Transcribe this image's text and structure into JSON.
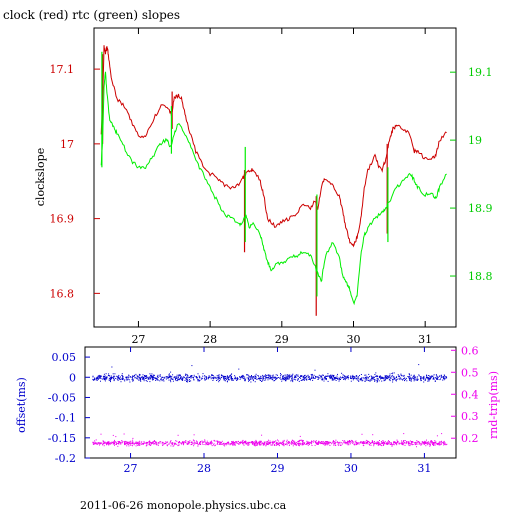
{
  "footer": "2011-06-26 monopole.physics.ubc.ca",
  "chart_data": [
    {
      "type": "line",
      "title": "clock (red) rtc (green) slopes",
      "xlabel": "",
      "ylabel": "clockslope",
      "xlim": [
        26.38,
        31.43
      ],
      "ylim": [
        16.755,
        17.155
      ],
      "y2lim": [
        18.725,
        19.165
      ],
      "x_ticks": [
        27,
        28,
        29,
        30,
        31
      ],
      "x_tick_labels": [
        "27",
        "28",
        "29",
        "30",
        "31"
      ],
      "y_ticks": [
        16.8,
        16.9,
        17,
        17.1
      ],
      "y_tick_labels": [
        "16.8",
        "16.9",
        "17",
        "17.1"
      ],
      "y2_ticks": [
        18.8,
        18.9,
        19,
        19.1
      ],
      "y2_tick_labels": [
        "18.8",
        "18.9",
        "19",
        "19.1"
      ],
      "colors": {
        "clock": "#cc0000",
        "rtc": "#00ee00",
        "left_axis": "#cc0000",
        "right_axis": "#00cc00"
      },
      "series": [
        {
          "axis": "left",
          "x": [
            26.48,
            26.5,
            26.52,
            26.54,
            26.56,
            26.58,
            26.62,
            26.7,
            26.8,
            26.9,
            27.0,
            27.1,
            27.2,
            27.3,
            27.4,
            27.46,
            27.5,
            27.55,
            27.6,
            27.65,
            27.7,
            27.8,
            27.9,
            28.0,
            28.1,
            28.2,
            28.3,
            28.4,
            28.46,
            28.5,
            28.55,
            28.6,
            28.7,
            28.75,
            28.8,
            28.9,
            29.0,
            29.1,
            29.2,
            29.3,
            29.4,
            29.47,
            29.5,
            29.55,
            29.6,
            29.7,
            29.8,
            29.85,
            29.9,
            29.95,
            30.0,
            30.05,
            30.1,
            30.15,
            30.2,
            30.3,
            30.35,
            30.4,
            30.45,
            30.5,
            30.55,
            30.6,
            30.7,
            30.8,
            30.85,
            30.9,
            31.0,
            31.1,
            31.15,
            31.2,
            31.3
          ],
          "y": [
            17.01,
            17.06,
            17.13,
            17.12,
            17.13,
            17.12,
            17.09,
            17.06,
            17.05,
            17.03,
            17.01,
            17.01,
            17.03,
            17.05,
            17.05,
            17.04,
            17.06,
            17.065,
            17.06,
            17.04,
            17.02,
            16.99,
            16.97,
            16.96,
            16.955,
            16.945,
            16.94,
            16.945,
            16.955,
            16.96,
            16.965,
            16.965,
            16.95,
            16.93,
            16.9,
            16.89,
            16.895,
            16.9,
            16.905,
            16.92,
            16.915,
            16.925,
            16.91,
            16.94,
            16.955,
            16.945,
            16.93,
            16.91,
            16.885,
            16.87,
            16.865,
            16.875,
            16.9,
            16.94,
            16.965,
            16.985,
            16.97,
            16.965,
            16.98,
            17.005,
            17.02,
            17.025,
            17.02,
            17.01,
            16.99,
            16.99,
            16.98,
            16.98,
            16.985,
            17.005,
            17.015
          ],
          "spikes": [
            {
              "x": 26.5,
              "low": 17.0,
              "high": 17.12
            },
            {
              "x": 27.47,
              "low": 17.02,
              "high": 17.07
            },
            {
              "x": 28.48,
              "low": 16.855,
              "high": 16.965
            },
            {
              "x": 29.48,
              "low": 16.77,
              "high": 16.93
            },
            {
              "x": 30.47,
              "low": 16.88,
              "high": 17.0
            }
          ]
        },
        {
          "axis": "right",
          "x": [
            26.48,
            26.5,
            26.52,
            26.54,
            26.56,
            26.6,
            26.65,
            26.7,
            26.8,
            26.9,
            27.0,
            27.1,
            27.2,
            27.3,
            27.4,
            27.45,
            27.5,
            27.55,
            27.6,
            27.7,
            27.8,
            27.9,
            28.0,
            28.1,
            28.2,
            28.3,
            28.4,
            28.45,
            28.5,
            28.55,
            28.6,
            28.7,
            28.75,
            28.8,
            28.85,
            28.9,
            29.0,
            29.1,
            29.2,
            29.3,
            29.4,
            29.48,
            29.55,
            29.6,
            29.7,
            29.8,
            29.85,
            29.9,
            29.95,
            30.0,
            30.05,
            30.1,
            30.15,
            30.2,
            30.3,
            30.4,
            30.45,
            30.5,
            30.6,
            30.7,
            30.8,
            30.85,
            30.9,
            31.0,
            31.1,
            31.15,
            31.2,
            31.3
          ],
          "y": [
            18.96,
            19.0,
            19.08,
            19.1,
            19.07,
            19.03,
            19.02,
            19.01,
            18.99,
            18.97,
            18.96,
            18.96,
            18.975,
            18.995,
            19.0,
            18.99,
            19.01,
            19.025,
            19.02,
            19.0,
            18.97,
            18.95,
            18.93,
            18.91,
            18.89,
            18.885,
            18.875,
            18.88,
            18.89,
            18.87,
            18.88,
            18.86,
            18.84,
            18.82,
            18.81,
            18.815,
            18.82,
            18.825,
            18.83,
            18.835,
            18.83,
            18.81,
            18.79,
            18.825,
            18.85,
            18.83,
            18.8,
            18.79,
            18.78,
            18.76,
            18.77,
            18.83,
            18.86,
            18.87,
            18.885,
            18.895,
            18.9,
            18.91,
            18.93,
            18.94,
            18.95,
            18.94,
            18.93,
            18.92,
            18.92,
            18.915,
            18.93,
            18.95
          ],
          "spikes": [
            {
              "x": 26.49,
              "low": 18.96,
              "high": 19.13
            },
            {
              "x": 27.46,
              "low": 18.98,
              "high": 19.05
            },
            {
              "x": 28.49,
              "low": 18.85,
              "high": 18.99
            },
            {
              "x": 29.49,
              "low": 18.77,
              "high": 18.92
            },
            {
              "x": 30.48,
              "low": 18.85,
              "high": 18.96
            }
          ]
        }
      ]
    },
    {
      "type": "scatter",
      "title": "",
      "xlabel": "",
      "ylabel": "offset(ms)",
      "y2label": "rnd-trip(ms)",
      "xlim": [
        26.38,
        31.43
      ],
      "ylim": [
        -0.2,
        0.075
      ],
      "y2lim": [
        0.11,
        0.615
      ],
      "x_ticks": [
        27,
        28,
        29,
        30,
        31
      ],
      "x_tick_labels": [
        "27",
        "28",
        "29",
        "30",
        "31"
      ],
      "y_ticks": [
        -0.2,
        -0.15,
        -0.1,
        -0.05,
        0,
        0.05
      ],
      "y_tick_labels": [
        "-0.2",
        "-0.15",
        "-0.1",
        "-0.05",
        "0",
        "0.05"
      ],
      "y2_ticks": [
        0.2,
        0.3,
        0.4,
        0.5,
        0.6
      ],
      "y2_tick_labels": [
        "0.2",
        "0.3",
        "0.4",
        "0.5",
        "0.6"
      ],
      "colors": {
        "offset": "#0000cc",
        "rndtrip": "#ee00ee",
        "left_axis": "#0000cc",
        "right_axis": "#ee00ee"
      },
      "series": [
        {
          "axis": "left",
          "x_range": [
            26.48,
            31.3
          ],
          "center": 0.0,
          "spread": 0.006,
          "count": 1300
        },
        {
          "axis": "right",
          "x_range": [
            26.48,
            31.3
          ],
          "center": 0.18,
          "spread": 0.008,
          "count": 1300
        }
      ]
    }
  ]
}
